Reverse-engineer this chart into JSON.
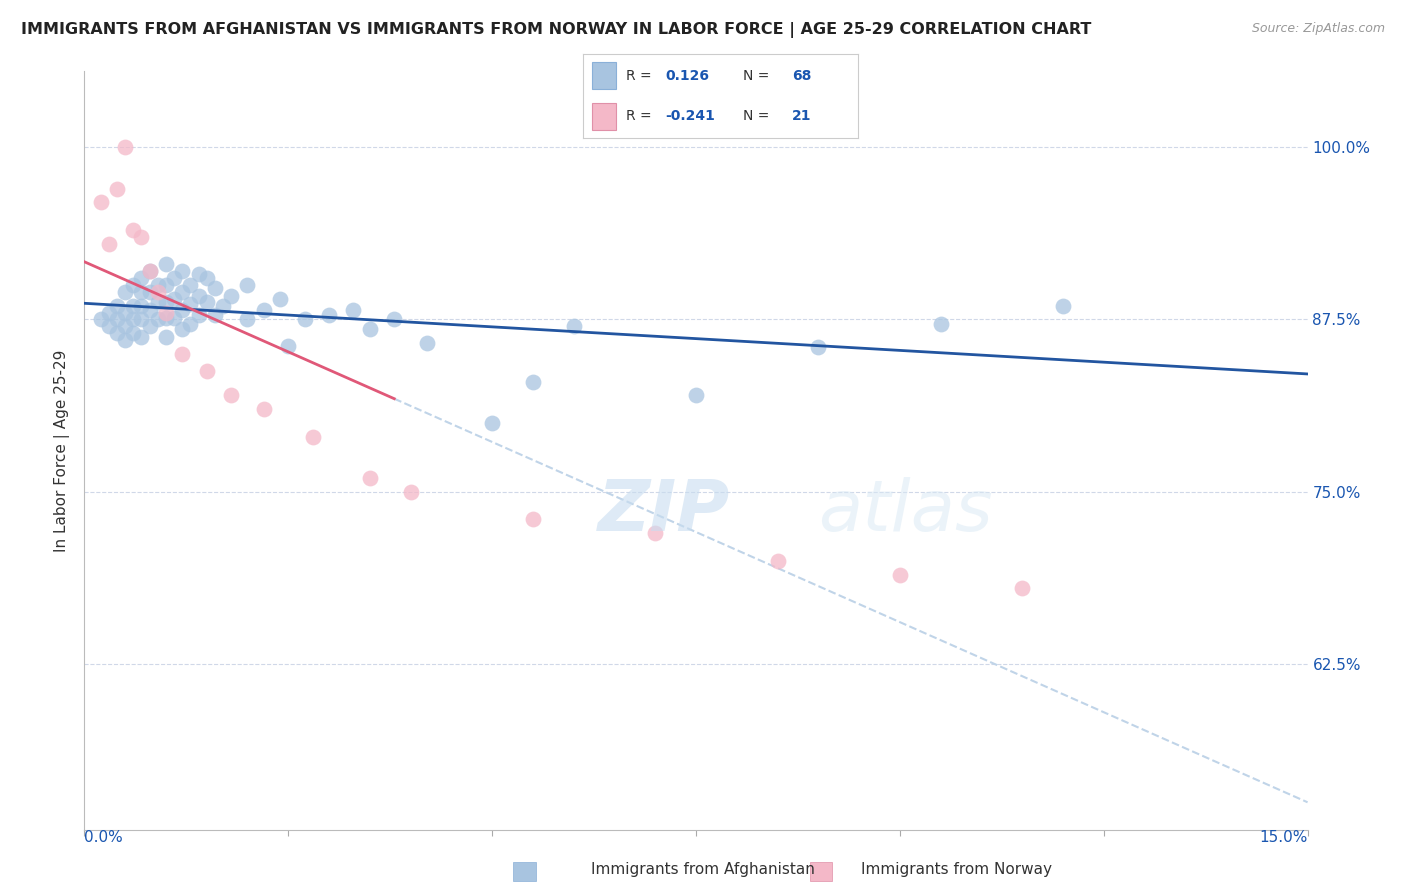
{
  "title": "IMMIGRANTS FROM AFGHANISTAN VS IMMIGRANTS FROM NORWAY IN LABOR FORCE | AGE 25-29 CORRELATION CHART",
  "source": "Source: ZipAtlas.com",
  "ylabel": "In Labor Force | Age 25-29",
  "ytick_labels": [
    "100.0%",
    "87.5%",
    "75.0%",
    "62.5%"
  ],
  "ytick_values": [
    1.0,
    0.875,
    0.75,
    0.625
  ],
  "xlim": [
    0.0,
    0.15
  ],
  "ylim": [
    0.505,
    1.055
  ],
  "r_afghanistan": 0.126,
  "n_afghanistan": 68,
  "r_norway": -0.241,
  "n_norway": 21,
  "watermark": "ZIPatlas",
  "afghanistan_color": "#a8c4e0",
  "norway_color": "#f4b8c8",
  "afghanistan_line_color": "#2255a0",
  "norway_line_color": "#e05878",
  "dashed_line_color": "#c0d4e8",
  "grid_color": "#d0d8e8",
  "afghanistan_x": [
    0.002,
    0.003,
    0.003,
    0.004,
    0.004,
    0.004,
    0.005,
    0.005,
    0.005,
    0.005,
    0.006,
    0.006,
    0.006,
    0.006,
    0.007,
    0.007,
    0.007,
    0.007,
    0.007,
    0.008,
    0.008,
    0.008,
    0.008,
    0.009,
    0.009,
    0.009,
    0.01,
    0.01,
    0.01,
    0.01,
    0.01,
    0.011,
    0.011,
    0.011,
    0.012,
    0.012,
    0.012,
    0.012,
    0.013,
    0.013,
    0.013,
    0.014,
    0.014,
    0.014,
    0.015,
    0.015,
    0.016,
    0.016,
    0.017,
    0.018,
    0.02,
    0.02,
    0.022,
    0.024,
    0.025,
    0.027,
    0.03,
    0.033,
    0.035,
    0.038,
    0.042,
    0.05,
    0.055,
    0.06,
    0.075,
    0.09,
    0.105,
    0.12
  ],
  "afghanistan_y": [
    0.875,
    0.88,
    0.87,
    0.885,
    0.875,
    0.865,
    0.895,
    0.88,
    0.87,
    0.86,
    0.9,
    0.885,
    0.875,
    0.865,
    0.905,
    0.895,
    0.885,
    0.875,
    0.862,
    0.91,
    0.895,
    0.882,
    0.87,
    0.9,
    0.888,
    0.875,
    0.915,
    0.9,
    0.888,
    0.876,
    0.862,
    0.905,
    0.89,
    0.876,
    0.91,
    0.895,
    0.882,
    0.868,
    0.9,
    0.886,
    0.872,
    0.908,
    0.892,
    0.878,
    0.905,
    0.888,
    0.898,
    0.878,
    0.885,
    0.892,
    0.9,
    0.875,
    0.882,
    0.89,
    0.856,
    0.875,
    0.878,
    0.882,
    0.868,
    0.875,
    0.858,
    0.8,
    0.83,
    0.87,
    0.82,
    0.855,
    0.872,
    0.885
  ],
  "norway_x": [
    0.002,
    0.003,
    0.004,
    0.005,
    0.006,
    0.007,
    0.008,
    0.009,
    0.01,
    0.012,
    0.015,
    0.018,
    0.022,
    0.028,
    0.035,
    0.04,
    0.055,
    0.07,
    0.085,
    0.1,
    0.115
  ],
  "norway_y": [
    0.96,
    0.93,
    0.97,
    1.0,
    0.94,
    0.935,
    0.91,
    0.895,
    0.88,
    0.85,
    0.838,
    0.82,
    0.81,
    0.79,
    0.76,
    0.75,
    0.73,
    0.72,
    0.7,
    0.69,
    0.68
  ]
}
